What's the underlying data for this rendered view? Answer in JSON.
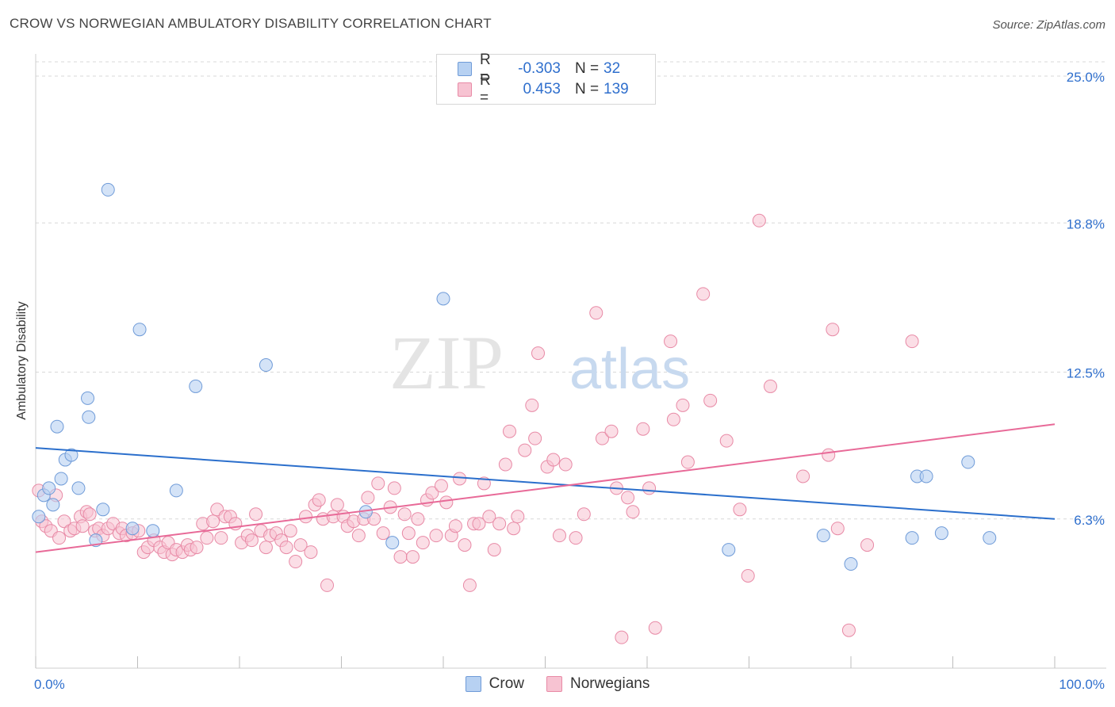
{
  "header": {
    "title": "CROW VS NORWEGIAN AMBULATORY DISABILITY CORRELATION CHART",
    "source": "Source: ZipAtlas.com"
  },
  "watermark": {
    "zip": "ZIP",
    "atlas": "atlas"
  },
  "legend": {
    "rows": [
      {
        "r_label": "R =",
        "r_value": "-0.303",
        "n_label": "N =",
        "n_value": "32"
      },
      {
        "r_label": "R =",
        "r_value": "0.453",
        "n_label": "N =",
        "n_value": "139"
      }
    ]
  },
  "bottom_legend": {
    "crow": "Crow",
    "norwegians": "Norwegians"
  },
  "colors": {
    "crow_fill": "#b7d1f2",
    "crow_stroke": "#6f9bd8",
    "crow_line": "#2b6fcc",
    "nor_fill": "#f7c3d2",
    "nor_stroke": "#e88aa6",
    "nor_line": "#e86a98",
    "tick_label": "#2f6fcd",
    "grid": "#d8d8d8"
  },
  "chart_data": {
    "type": "scatter",
    "title": "CROW VS NORWEGIAN AMBULATORY DISABILITY CORRELATION CHART",
    "xlabel": "",
    "ylabel": "Ambulatory Disability",
    "xlim": [
      0,
      100
    ],
    "ylim": [
      0,
      25.5
    ],
    "y_ticks": [
      6.3,
      12.5,
      18.8,
      25.0
    ],
    "y_tick_labels": [
      "6.3%",
      "12.5%",
      "18.8%",
      "25.0%"
    ],
    "x_tick_labels": [
      "0.0%",
      "100.0%"
    ],
    "x_minor_ticks": [
      0,
      10,
      20,
      30,
      40,
      50,
      60,
      70,
      80,
      90,
      100
    ],
    "grid": true,
    "legend_position": "top-center",
    "series": [
      {
        "name": "Crow",
        "trend": {
          "x": [
            0,
            100
          ],
          "y": [
            9.3,
            6.3
          ]
        },
        "points": [
          [
            0.3,
            6.4
          ],
          [
            0.8,
            7.3
          ],
          [
            1.3,
            7.6
          ],
          [
            1.7,
            6.9
          ],
          [
            2.1,
            10.2
          ],
          [
            2.5,
            8.0
          ],
          [
            2.9,
            8.8
          ],
          [
            3.5,
            9.0
          ],
          [
            4.2,
            7.6
          ],
          [
            5.1,
            11.4
          ],
          [
            5.2,
            10.6
          ],
          [
            5.9,
            5.4
          ],
          [
            6.6,
            6.7
          ],
          [
            7.1,
            20.2
          ],
          [
            9.5,
            5.9
          ],
          [
            10.2,
            14.3
          ],
          [
            11.5,
            5.8
          ],
          [
            13.8,
            7.5
          ],
          [
            15.7,
            11.9
          ],
          [
            22.6,
            12.8
          ],
          [
            32.4,
            6.6
          ],
          [
            35.0,
            5.3
          ],
          [
            40.0,
            15.6
          ],
          [
            68.0,
            5.0
          ],
          [
            77.3,
            5.6
          ],
          [
            80.0,
            4.4
          ],
          [
            86.0,
            5.5
          ],
          [
            86.5,
            8.1
          ],
          [
            87.4,
            8.1
          ],
          [
            88.9,
            5.7
          ],
          [
            91.5,
            8.7
          ],
          [
            93.6,
            5.5
          ]
        ]
      },
      {
        "name": "Norwegians",
        "trend": {
          "x": [
            0,
            100
          ],
          "y": [
            4.9,
            10.3
          ]
        },
        "points": [
          [
            0.3,
            7.5
          ],
          [
            0.6,
            6.2
          ],
          [
            1.0,
            6.0
          ],
          [
            1.5,
            5.8
          ],
          [
            2.0,
            7.3
          ],
          [
            2.3,
            5.5
          ],
          [
            2.8,
            6.2
          ],
          [
            3.4,
            5.8
          ],
          [
            3.8,
            5.9
          ],
          [
            4.4,
            6.4
          ],
          [
            4.6,
            6.0
          ],
          [
            5.0,
            6.6
          ],
          [
            5.3,
            6.5
          ],
          [
            5.8,
            5.8
          ],
          [
            6.2,
            5.9
          ],
          [
            6.6,
            5.6
          ],
          [
            7.1,
            5.9
          ],
          [
            7.6,
            6.1
          ],
          [
            8.2,
            5.7
          ],
          [
            8.5,
            5.9
          ],
          [
            8.9,
            5.6
          ],
          [
            9.5,
            5.7
          ],
          [
            10.1,
            5.8
          ],
          [
            10.6,
            4.9
          ],
          [
            11.0,
            5.1
          ],
          [
            11.6,
            5.4
          ],
          [
            12.2,
            5.1
          ],
          [
            12.6,
            4.9
          ],
          [
            13.0,
            5.3
          ],
          [
            13.4,
            4.8
          ],
          [
            13.8,
            5.0
          ],
          [
            14.4,
            4.9
          ],
          [
            14.9,
            5.2
          ],
          [
            15.2,
            5.0
          ],
          [
            15.8,
            5.1
          ],
          [
            16.4,
            6.1
          ],
          [
            16.8,
            5.5
          ],
          [
            17.4,
            6.2
          ],
          [
            17.8,
            6.7
          ],
          [
            18.2,
            5.5
          ],
          [
            18.6,
            6.4
          ],
          [
            19.1,
            6.4
          ],
          [
            19.6,
            6.1
          ],
          [
            20.2,
            5.3
          ],
          [
            20.8,
            5.6
          ],
          [
            21.2,
            5.4
          ],
          [
            21.6,
            6.5
          ],
          [
            22.1,
            5.8
          ],
          [
            22.6,
            5.1
          ],
          [
            23.0,
            5.6
          ],
          [
            23.6,
            5.7
          ],
          [
            24.1,
            5.4
          ],
          [
            24.6,
            5.1
          ],
          [
            25.0,
            5.8
          ],
          [
            25.5,
            4.5
          ],
          [
            26.0,
            5.2
          ],
          [
            26.5,
            6.4
          ],
          [
            27.0,
            4.9
          ],
          [
            27.4,
            6.9
          ],
          [
            27.8,
            7.1
          ],
          [
            28.2,
            6.3
          ],
          [
            28.6,
            3.5
          ],
          [
            29.2,
            6.4
          ],
          [
            29.6,
            6.9
          ],
          [
            30.2,
            6.4
          ],
          [
            30.6,
            6.0
          ],
          [
            31.2,
            6.2
          ],
          [
            31.7,
            5.6
          ],
          [
            32.2,
            6.3
          ],
          [
            32.6,
            7.2
          ],
          [
            33.2,
            6.3
          ],
          [
            33.6,
            7.8
          ],
          [
            34.1,
            5.7
          ],
          [
            34.8,
            6.8
          ],
          [
            35.2,
            7.6
          ],
          [
            35.8,
            4.7
          ],
          [
            36.2,
            6.5
          ],
          [
            36.6,
            5.7
          ],
          [
            37.0,
            4.7
          ],
          [
            37.5,
            6.3
          ],
          [
            38.0,
            5.3
          ],
          [
            38.4,
            7.1
          ],
          [
            38.9,
            7.4
          ],
          [
            39.3,
            5.6
          ],
          [
            39.8,
            7.7
          ],
          [
            40.3,
            7.0
          ],
          [
            40.8,
            5.6
          ],
          [
            41.2,
            6.0
          ],
          [
            41.6,
            8.0
          ],
          [
            42.1,
            5.2
          ],
          [
            42.6,
            3.5
          ],
          [
            43.0,
            6.1
          ],
          [
            43.5,
            6.1
          ],
          [
            44.0,
            7.8
          ],
          [
            44.5,
            6.4
          ],
          [
            45.0,
            5.0
          ],
          [
            45.5,
            6.1
          ],
          [
            46.1,
            8.6
          ],
          [
            46.5,
            10.0
          ],
          [
            46.9,
            5.9
          ],
          [
            47.3,
            6.4
          ],
          [
            48.0,
            9.2
          ],
          [
            48.7,
            11.1
          ],
          [
            49.0,
            9.7
          ],
          [
            49.3,
            13.3
          ],
          [
            50.2,
            8.5
          ],
          [
            50.8,
            8.8
          ],
          [
            51.4,
            5.6
          ],
          [
            52.0,
            8.6
          ],
          [
            53.0,
            5.5
          ],
          [
            53.8,
            6.5
          ],
          [
            55.0,
            15.0
          ],
          [
            55.6,
            9.7
          ],
          [
            56.5,
            10.0
          ],
          [
            57.0,
            7.6
          ],
          [
            57.5,
            1.3
          ],
          [
            58.1,
            7.2
          ],
          [
            58.6,
            6.6
          ],
          [
            59.6,
            10.1
          ],
          [
            60.2,
            7.6
          ],
          [
            60.8,
            1.7
          ],
          [
            62.3,
            13.8
          ],
          [
            62.6,
            10.5
          ],
          [
            63.5,
            11.1
          ],
          [
            64.0,
            8.7
          ],
          [
            65.5,
            15.8
          ],
          [
            66.2,
            11.3
          ],
          [
            67.8,
            9.6
          ],
          [
            69.1,
            6.7
          ],
          [
            69.9,
            3.9
          ],
          [
            71.0,
            18.9
          ],
          [
            72.1,
            11.9
          ],
          [
            75.3,
            8.1
          ],
          [
            77.8,
            9.0
          ],
          [
            78.2,
            14.3
          ],
          [
            78.7,
            5.9
          ],
          [
            79.8,
            1.6
          ],
          [
            81.6,
            5.2
          ],
          [
            86.0,
            13.8
          ]
        ]
      }
    ]
  }
}
